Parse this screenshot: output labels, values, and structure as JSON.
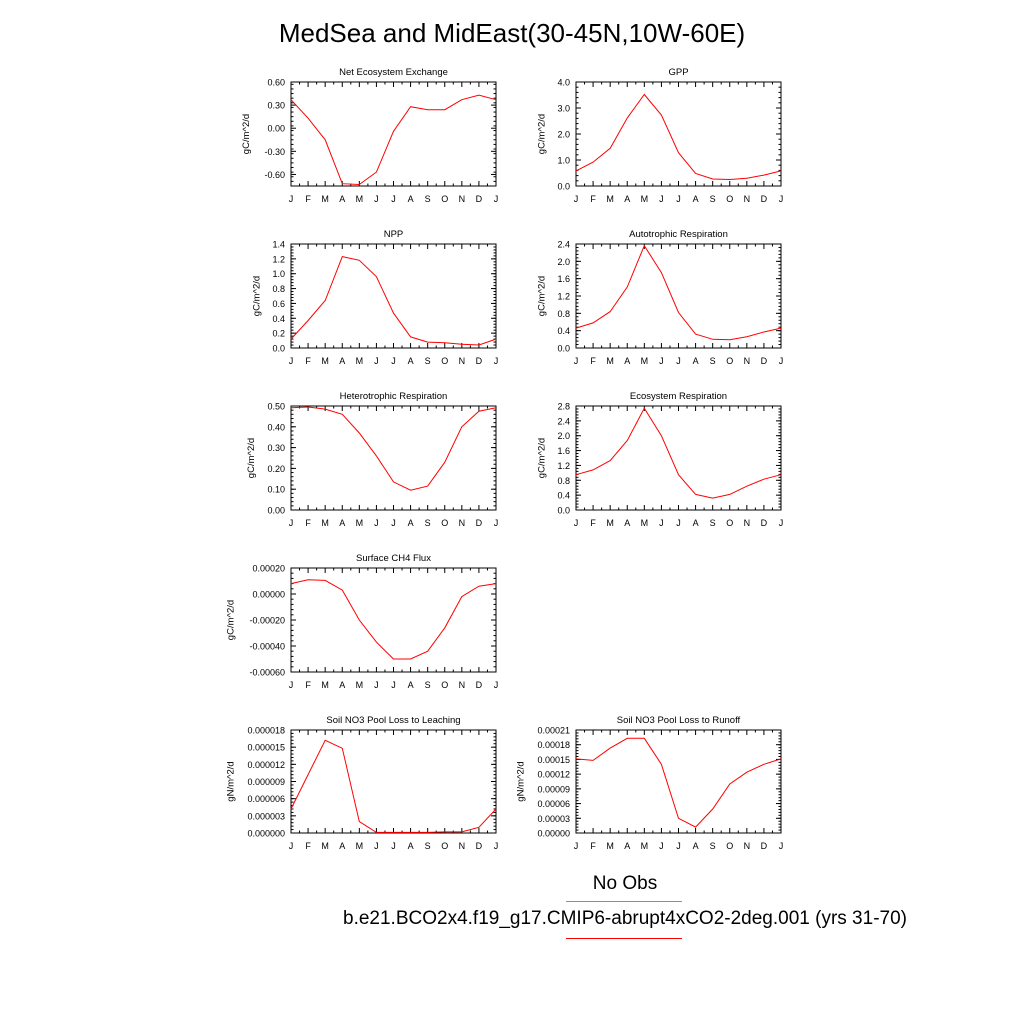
{
  "title": "MedSea and MidEast(30-45N,10W-60E)",
  "months": [
    "J",
    "F",
    "M",
    "A",
    "M",
    "J",
    "J",
    "A",
    "S",
    "O",
    "N",
    "D",
    "J"
  ],
  "colors": {
    "model_line": "#ff0000",
    "obs_line": "#8080ff",
    "axis": "#000000"
  },
  "legend": {
    "obs_label": "No Obs",
    "case_label": "b.e21.BCO2x4.f19_g17.CMIP6-abrupt4xCO2-2deg.001 (yrs 31-70)"
  },
  "chart_data": [
    {
      "type": "line",
      "title": "Net Ecosystem Exchange",
      "ylabel": "gC/m^2/d",
      "ylim": [
        -0.75,
        0.6
      ],
      "yticks": [
        "0.60",
        "0.30",
        "0.00",
        "-0.30",
        "-0.60"
      ],
      "ytick_values": [
        0.6,
        0.3,
        0,
        -0.3,
        -0.6
      ],
      "x": [
        0,
        1,
        2,
        3,
        4,
        5,
        6,
        7,
        8,
        9,
        10,
        11,
        12
      ],
      "values": [
        0.37,
        0.13,
        -0.15,
        -0.72,
        -0.73,
        -0.57,
        -0.04,
        0.28,
        0.24,
        0.24,
        0.37,
        0.43,
        0.37
      ]
    },
    {
      "type": "line",
      "title": "GPP",
      "ylabel": "gC/m^2/d",
      "ylim": [
        0,
        4
      ],
      "yticks": [
        "4.0",
        "3.0",
        "2.0",
        "1.0",
        "0.0"
      ],
      "ytick_values": [
        4,
        3,
        2,
        1,
        0
      ],
      "x": [
        0,
        1,
        2,
        3,
        4,
        5,
        6,
        7,
        8,
        9,
        10,
        11,
        12
      ],
      "values": [
        0.58,
        0.92,
        1.45,
        2.62,
        3.52,
        2.73,
        1.28,
        0.48,
        0.27,
        0.25,
        0.3,
        0.42,
        0.58
      ]
    },
    {
      "type": "line",
      "title": "NPP",
      "ylabel": "gC/m^2/d",
      "ylim": [
        0,
        1.4
      ],
      "yticks": [
        "1.4",
        "1.2",
        "1.0",
        "0.8",
        "0.6",
        "0.4",
        "0.2",
        "0.0"
      ],
      "ytick_values": [
        1.4,
        1.2,
        1.0,
        0.8,
        0.6,
        0.4,
        0.2,
        0
      ],
      "x": [
        0,
        1,
        2,
        3,
        4,
        5,
        6,
        7,
        8,
        9,
        10,
        11,
        12
      ],
      "values": [
        0.12,
        0.37,
        0.64,
        1.23,
        1.18,
        0.96,
        0.47,
        0.15,
        0.08,
        0.07,
        0.05,
        0.04,
        0.12
      ]
    },
    {
      "type": "line",
      "title": "Autotrophic Respiration",
      "ylabel": "gC/m^2/d",
      "ylim": [
        0,
        2.4
      ],
      "yticks": [
        "2.4",
        "2.0",
        "1.6",
        "1.2",
        "0.8",
        "0.4",
        "0.0"
      ],
      "ytick_values": [
        2.4,
        2.0,
        1.6,
        1.2,
        0.8,
        0.4,
        0
      ],
      "x": [
        0,
        1,
        2,
        3,
        4,
        5,
        6,
        7,
        8,
        9,
        10,
        11,
        12
      ],
      "values": [
        0.46,
        0.58,
        0.84,
        1.41,
        2.36,
        1.74,
        0.82,
        0.32,
        0.2,
        0.19,
        0.26,
        0.37,
        0.46
      ]
    },
    {
      "type": "line",
      "title": "Heterotrophic Respiration",
      "ylabel": "gC/m^2/d",
      "ylim": [
        0,
        0.5
      ],
      "yticks": [
        "0.50",
        "0.40",
        "0.30",
        "0.20",
        "0.10",
        "0.00"
      ],
      "ytick_values": [
        0.5,
        0.4,
        0.3,
        0.2,
        0.1,
        0
      ],
      "x": [
        0,
        1,
        2,
        3,
        4,
        5,
        6,
        7,
        8,
        9,
        10,
        11,
        12
      ],
      "values": [
        0.492,
        0.495,
        0.485,
        0.46,
        0.37,
        0.26,
        0.135,
        0.095,
        0.115,
        0.23,
        0.4,
        0.475,
        0.492
      ]
    },
    {
      "type": "line",
      "title": "Ecosystem Respiration",
      "ylabel": "gC/m^2/d",
      "ylim": [
        0,
        2.8
      ],
      "yticks": [
        "2.8",
        "2.4",
        "2.0",
        "1.6",
        "1.2",
        "0.8",
        "0.4",
        "0.0"
      ],
      "ytick_values": [
        2.8,
        2.4,
        2.0,
        1.6,
        1.2,
        0.8,
        0.4,
        0
      ],
      "x": [
        0,
        1,
        2,
        3,
        4,
        5,
        6,
        7,
        8,
        9,
        10,
        11,
        12
      ],
      "values": [
        0.95,
        1.08,
        1.33,
        1.87,
        2.74,
        2.0,
        0.95,
        0.42,
        0.32,
        0.42,
        0.64,
        0.83,
        0.95
      ]
    },
    {
      "type": "line",
      "title": "Surface CH4 Flux",
      "ylabel": "gC/m^2/d",
      "ylim": [
        -0.0006,
        0.0002
      ],
      "yticks": [
        "0.00020",
        "0.00000",
        "-0.00020",
        "-0.00040",
        "-0.00060"
      ],
      "ytick_values": [
        0.0002,
        0,
        -0.0002,
        -0.0004,
        -0.0006
      ],
      "x": [
        0,
        1,
        2,
        3,
        4,
        5,
        6,
        7,
        8,
        9,
        10,
        11,
        12
      ],
      "values": [
        8e-05,
        0.00011,
        0.000105,
        3e-05,
        -0.0002,
        -0.00037,
        -0.0005,
        -0.0005,
        -0.00044,
        -0.00026,
        -2e-05,
        6e-05,
        8e-05
      ]
    },
    {
      "type": "line",
      "title": "Soil NO3 Pool Loss to Leaching",
      "ylabel": "gN/m^2/d",
      "ylim": [
        0,
        1.8e-05
      ],
      "yticks": [
        "0.000018",
        "0.000015",
        "0.000012",
        "0.000009",
        "0.000006",
        "0.000003",
        "0.000000"
      ],
      "ytick_values": [
        1.8e-05,
        1.5e-05,
        1.2e-05,
        9e-06,
        6e-06,
        3e-06,
        0
      ],
      "x": [
        0,
        1,
        2,
        3,
        4,
        5,
        6,
        7,
        8,
        9,
        10,
        11,
        12
      ],
      "values": [
        4.2e-06,
        1.02e-05,
        1.62e-05,
        1.48e-05,
        2e-06,
        1e-07,
        1e-07,
        1e-07,
        1e-07,
        2e-07,
        2e-07,
        1e-06,
        4.2e-06
      ]
    },
    {
      "type": "line",
      "title": "Soil NO3 Pool Loss to Runoff",
      "ylabel": "gN/m^2/d",
      "ylim": [
        0,
        0.00021
      ],
      "yticks": [
        "0.00021",
        "0.00018",
        "0.00015",
        "0.00012",
        "0.00009",
        "0.00006",
        "0.00003",
        "0.00000"
      ],
      "ytick_values": [
        0.00021,
        0.00018,
        0.00015,
        0.00012,
        9e-05,
        6e-05,
        3e-05,
        0
      ],
      "x": [
        0,
        1,
        2,
        3,
        4,
        5,
        6,
        7,
        8,
        9,
        10,
        11,
        12
      ],
      "values": [
        0.000151,
        0.000148,
        0.000173,
        0.000193,
        0.000193,
        0.00014,
        3e-05,
        1.2e-05,
        4.9e-05,
        0.0001,
        0.000124,
        0.00014,
        0.000151
      ]
    }
  ]
}
